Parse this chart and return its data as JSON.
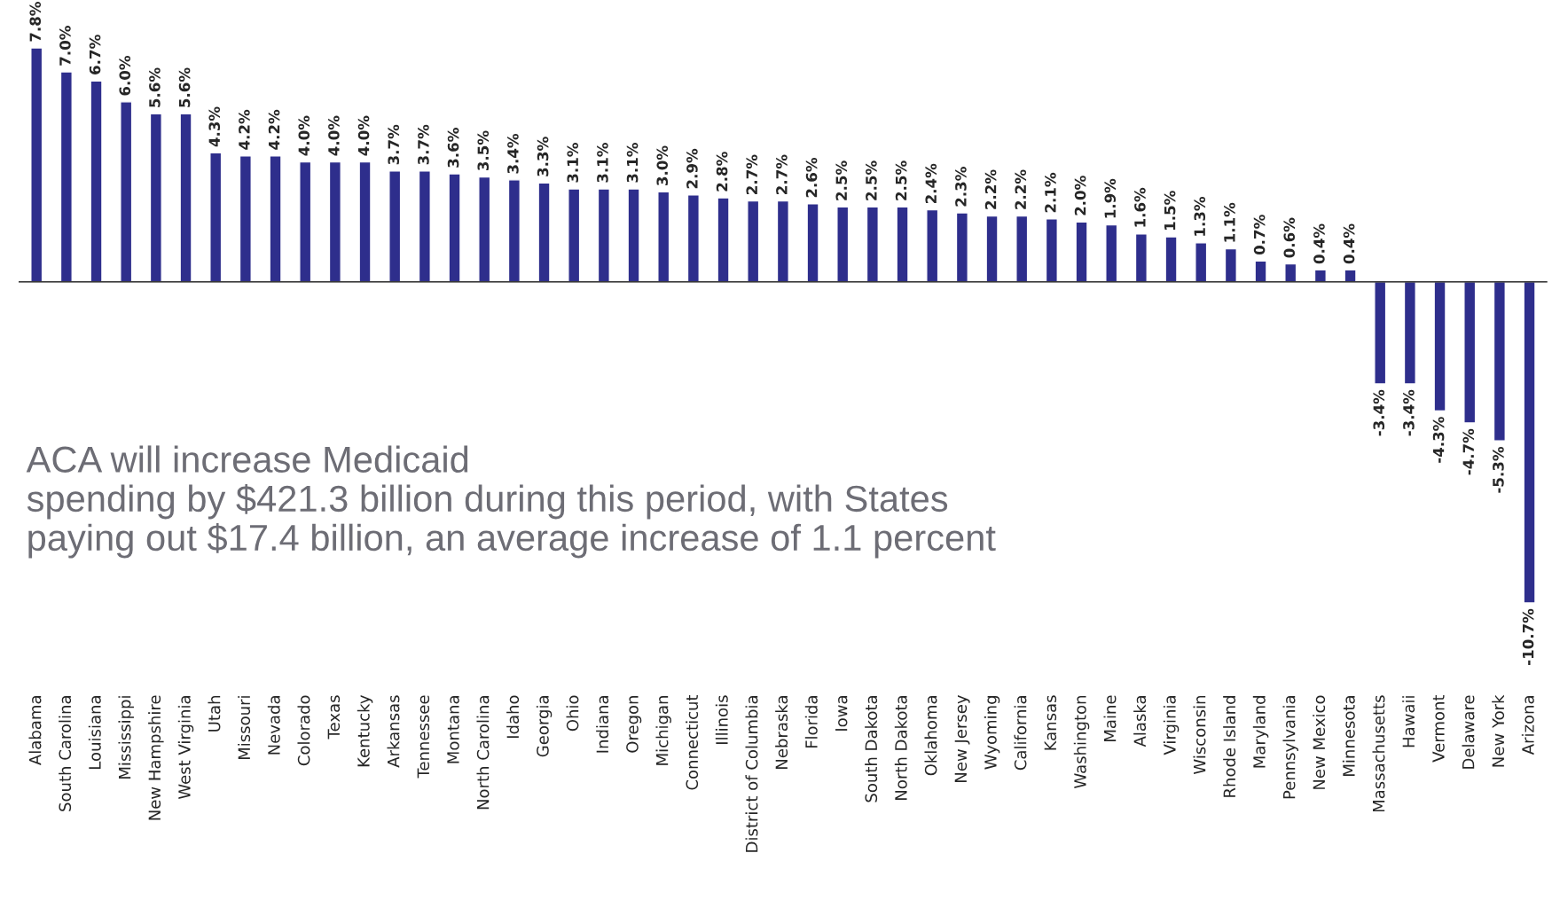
{
  "chart_data": {
    "type": "bar",
    "categories": [
      "Alabama",
      "South Carolina",
      "Louisiana",
      "Mississippi",
      "New Hampshire",
      "West Virginia",
      "Utah",
      "Missouri",
      "Nevada",
      "Colorado",
      "Texas",
      "Kentucky",
      "Arkansas",
      "Tennessee",
      "Montana",
      "North Carolina",
      "Idaho",
      "Georgia",
      "Ohio",
      "Indiana",
      "Oregon",
      "Michigan",
      "Connecticut",
      "Illinois",
      "District of Columbia",
      "Nebraska",
      "Florida",
      "Iowa",
      "South Dakota",
      "North Dakota",
      "Oklahoma",
      "New Jersey",
      "Wyoming",
      "California",
      "Kansas",
      "Washington",
      "Maine",
      "Alaska",
      "Virginia",
      "Wisconsin",
      "Rhode Island",
      "Maryland",
      "Pennsylvania",
      "New Mexico",
      "Minnesota",
      "Massachusetts",
      "Hawaii",
      "Vermont",
      "Delaware",
      "New York",
      "Arizona"
    ],
    "values": [
      7.8,
      7.0,
      6.7,
      6.0,
      5.6,
      5.6,
      4.3,
      4.2,
      4.2,
      4.0,
      4.0,
      4.0,
      3.7,
      3.7,
      3.6,
      3.5,
      3.4,
      3.3,
      3.1,
      3.1,
      3.1,
      3.0,
      2.9,
      2.8,
      2.7,
      2.7,
      2.6,
      2.5,
      2.5,
      2.5,
      2.4,
      2.3,
      2.2,
      2.2,
      2.1,
      2.0,
      1.9,
      1.6,
      1.5,
      1.3,
      1.1,
      0.7,
      0.6,
      0.4,
      0.4,
      -3.4,
      -3.4,
      -4.3,
      -4.7,
      -5.3,
      -10.7
    ],
    "value_labels": [
      "7.8%",
      "7.0%",
      "6.7%",
      "6.0%",
      "5.6%",
      "5.6%",
      "4.3%",
      "4.2%",
      "4.2%",
      "4.0%",
      "4.0%",
      "4.0%",
      "3.7%",
      "3.7%",
      "3.6%",
      "3.5%",
      "3.4%",
      "3.3%",
      "3.1%",
      "3.1%",
      "3.1%",
      "3.0%",
      "2.9%",
      "2.8%",
      "2.7%",
      "2.7%",
      "2.6%",
      "2.5%",
      "2.5%",
      "2.5%",
      "2.4%",
      "2.3%",
      "2.2%",
      "2.2%",
      "2.1%",
      "2.0%",
      "1.9%",
      "1.6%",
      "1.5%",
      "1.3%",
      "1.1%",
      "0.7%",
      "0.6%",
      "0.4%",
      "0.4%",
      "-3.4%",
      "-3.4%",
      "-4.3%",
      "-4.7%",
      "-5.3%",
      "-10.7%"
    ],
    "color": "#2e2e8c",
    "annotations": [
      "ACA will increase Medicaid\nspending by $421.3 billion during this period, with States\npaying out $17.4 billion, an average increase of 1.1 percent"
    ],
    "grid": false,
    "legend": false
  }
}
